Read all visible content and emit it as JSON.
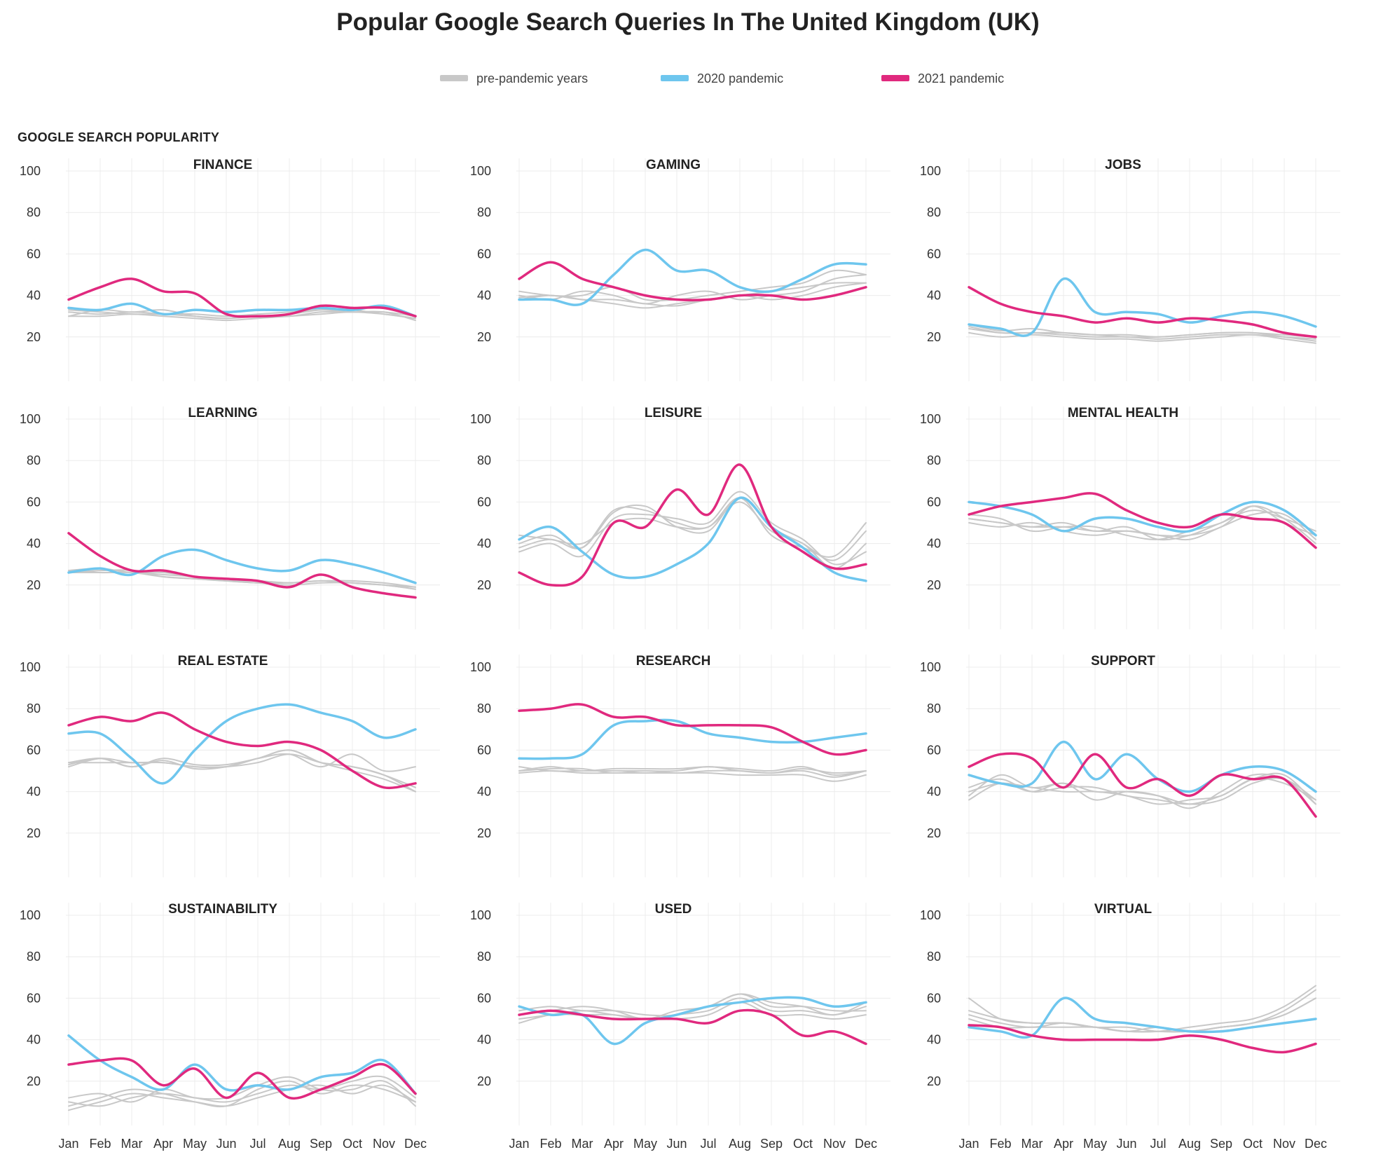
{
  "title": "Popular Google Search Queries In The United Kingdom (UK)",
  "legend": [
    {
      "label": "pre-pandemic years",
      "color": "#c8c8c8"
    },
    {
      "label": "2020 pandemic",
      "color": "#6ec6ee"
    },
    {
      "label": "2021 pandemic",
      "color": "#e0297e"
    }
  ],
  "colors": {
    "pre": "#c8c8c8",
    "y2020": "#6ec6ee",
    "y2021": "#e0297e",
    "grid": "#ececec"
  },
  "chart_data": {
    "type": "line",
    "ylabel": "GOOGLE SEARCH POPULARITY",
    "ylim": [
      0,
      100
    ],
    "yticks": [
      100,
      80,
      60,
      40,
      20
    ],
    "x": [
      "Jan",
      "Feb",
      "Mar",
      "Apr",
      "May",
      "Jun",
      "Jul",
      "Aug",
      "Sep",
      "Oct",
      "Nov",
      "Dec"
    ],
    "panels": [
      {
        "title": "FINANCE",
        "pre": [
          [
            30,
            30,
            31,
            30,
            29,
            28,
            29,
            30,
            31,
            32,
            31,
            29
          ],
          [
            32,
            31,
            32,
            31,
            30,
            29,
            30,
            30,
            32,
            32,
            32,
            28
          ],
          [
            33,
            32,
            31,
            31,
            31,
            30,
            31,
            32,
            33,
            32,
            32,
            30
          ],
          [
            30,
            33,
            32,
            33,
            30,
            29,
            30,
            31,
            33,
            33,
            31,
            29
          ]
        ],
        "y2020": [
          34,
          33,
          36,
          31,
          33,
          32,
          33,
          33,
          34,
          33,
          35,
          30
        ],
        "y2021": [
          38,
          44,
          48,
          42,
          41,
          31,
          30,
          31,
          35,
          34,
          34,
          30
        ]
      },
      {
        "title": "GAMING",
        "pre": [
          [
            38,
            40,
            38,
            36,
            34,
            36,
            38,
            40,
            38,
            40,
            44,
            46
          ],
          [
            40,
            38,
            42,
            40,
            36,
            40,
            42,
            38,
            40,
            42,
            48,
            50
          ],
          [
            42,
            40,
            40,
            44,
            38,
            38,
            40,
            42,
            44,
            46,
            52,
            50
          ],
          [
            39,
            40,
            38,
            38,
            36,
            35,
            38,
            40,
            42,
            44,
            46,
            46
          ]
        ],
        "y2020": [
          38,
          38,
          36,
          50,
          62,
          52,
          52,
          44,
          42,
          48,
          55,
          55
        ],
        "y2021": [
          48,
          56,
          48,
          44,
          40,
          38,
          38,
          40,
          40,
          38,
          40,
          44
        ]
      },
      {
        "title": "JOBS",
        "pre": [
          [
            24,
            22,
            22,
            21,
            20,
            20,
            19,
            20,
            21,
            21,
            20,
            19
          ],
          [
            26,
            23,
            24,
            22,
            21,
            21,
            20,
            21,
            22,
            22,
            20,
            18
          ],
          [
            22,
            20,
            21,
            20,
            19,
            19,
            18,
            19,
            20,
            21,
            19,
            17
          ],
          [
            25,
            22,
            22,
            22,
            21,
            20,
            20,
            21,
            22,
            22,
            21,
            20
          ]
        ],
        "y2020": [
          26,
          24,
          22,
          48,
          32,
          32,
          31,
          27,
          30,
          32,
          30,
          25
        ],
        "y2021": [
          44,
          36,
          32,
          30,
          27,
          29,
          27,
          29,
          28,
          26,
          22,
          20
        ]
      },
      {
        "title": "LEARNING",
        "pre": [
          [
            26,
            27,
            27,
            24,
            23,
            22,
            22,
            21,
            22,
            22,
            21,
            19
          ],
          [
            26,
            26,
            26,
            25,
            24,
            22,
            21,
            20,
            21,
            21,
            20,
            18
          ],
          [
            27,
            28,
            26,
            26,
            24,
            23,
            22,
            21,
            22,
            21,
            20,
            19
          ],
          [
            27,
            26,
            26,
            24,
            23,
            22,
            21,
            21,
            22,
            21,
            20,
            18
          ]
        ],
        "y2020": [
          26,
          28,
          25,
          34,
          37,
          32,
          28,
          27,
          32,
          30,
          26,
          21
        ],
        "y2021": [
          45,
          34,
          27,
          27,
          24,
          23,
          22,
          19,
          25,
          19,
          16,
          14
        ]
      },
      {
        "title": "LEISURE",
        "pre": [
          [
            40,
            44,
            38,
            55,
            58,
            48,
            46,
            62,
            48,
            40,
            32,
            46
          ],
          [
            36,
            40,
            34,
            52,
            54,
            52,
            50,
            65,
            50,
            42,
            30,
            36
          ],
          [
            44,
            42,
            40,
            50,
            52,
            48,
            48,
            60,
            46,
            40,
            28,
            40
          ],
          [
            38,
            42,
            38,
            56,
            56,
            50,
            48,
            62,
            44,
            38,
            34,
            50
          ]
        ],
        "y2020": [
          42,
          48,
          36,
          25,
          24,
          30,
          40,
          62,
          48,
          38,
          26,
          22
        ],
        "y2021": [
          26,
          20,
          24,
          50,
          48,
          66,
          54,
          78,
          48,
          36,
          28,
          30
        ]
      },
      {
        "title": "MENTAL HEALTH",
        "pre": [
          [
            52,
            50,
            48,
            50,
            46,
            48,
            42,
            44,
            50,
            56,
            52,
            46
          ],
          [
            50,
            48,
            50,
            46,
            44,
            46,
            44,
            42,
            48,
            54,
            54,
            42
          ],
          [
            54,
            52,
            46,
            48,
            48,
            44,
            42,
            46,
            50,
            58,
            50,
            44
          ],
          [
            52,
            50,
            48,
            48,
            46,
            46,
            44,
            44,
            48,
            58,
            52,
            40
          ]
        ],
        "y2020": [
          60,
          58,
          54,
          46,
          52,
          52,
          48,
          46,
          54,
          60,
          56,
          44
        ],
        "y2021": [
          54,
          58,
          60,
          62,
          64,
          56,
          50,
          48,
          54,
          52,
          50,
          38
        ]
      },
      {
        "title": "REAL ESTATE",
        "pre": [
          [
            53,
            56,
            52,
            55,
            51,
            52,
            56,
            58,
            52,
            58,
            50,
            52
          ],
          [
            54,
            54,
            54,
            54,
            52,
            52,
            54,
            58,
            54,
            52,
            48,
            40
          ],
          [
            52,
            56,
            54,
            54,
            52,
            52,
            56,
            60,
            54,
            50,
            46,
            40
          ],
          [
            54,
            56,
            52,
            56,
            53,
            53,
            56,
            60,
            54,
            52,
            48,
            42
          ]
        ],
        "y2020": [
          68,
          68,
          56,
          44,
          60,
          74,
          80,
          82,
          78,
          74,
          66,
          70
        ],
        "y2021": [
          72,
          76,
          74,
          78,
          70,
          64,
          62,
          64,
          60,
          50,
          42,
          44
        ]
      },
      {
        "title": "RESEARCH",
        "pre": [
          [
            50,
            51,
            51,
            49,
            50,
            49,
            50,
            50,
            49,
            50,
            47,
            50
          ],
          [
            52,
            50,
            50,
            50,
            50,
            50,
            52,
            50,
            49,
            51,
            49,
            50
          ],
          [
            50,
            52,
            50,
            51,
            51,
            51,
            52,
            51,
            50,
            52,
            48,
            50
          ],
          [
            49,
            50,
            49,
            49,
            49,
            49,
            49,
            48,
            48,
            48,
            45,
            48
          ]
        ],
        "y2020": [
          56,
          56,
          58,
          72,
          74,
          74,
          68,
          66,
          64,
          64,
          66,
          68
        ],
        "y2021": [
          79,
          80,
          82,
          76,
          76,
          72,
          72,
          72,
          71,
          64,
          58,
          60
        ]
      },
      {
        "title": "SUPPORT",
        "pre": [
          [
            38,
            48,
            42,
            44,
            40,
            40,
            38,
            34,
            36,
            44,
            46,
            36
          ],
          [
            42,
            46,
            40,
            42,
            42,
            38,
            36,
            34,
            38,
            46,
            48,
            34
          ],
          [
            36,
            44,
            40,
            44,
            36,
            40,
            38,
            32,
            40,
            48,
            46,
            34
          ],
          [
            40,
            44,
            42,
            40,
            40,
            38,
            34,
            36,
            38,
            46,
            44,
            36
          ]
        ],
        "y2020": [
          48,
          44,
          44,
          64,
          46,
          58,
          46,
          40,
          48,
          52,
          50,
          40
        ],
        "y2021": [
          52,
          58,
          56,
          42,
          58,
          42,
          46,
          38,
          48,
          46,
          46,
          28
        ]
      },
      {
        "title": "SUSTAINABILITY",
        "pre": [
          [
            8,
            12,
            16,
            14,
            10,
            8,
            16,
            20,
            14,
            18,
            16,
            10
          ],
          [
            12,
            14,
            10,
            16,
            12,
            12,
            18,
            22,
            16,
            16,
            20,
            8
          ],
          [
            6,
            10,
            14,
            12,
            10,
            8,
            12,
            16,
            18,
            14,
            18,
            10
          ],
          [
            10,
            8,
            12,
            14,
            12,
            10,
            14,
            18,
            16,
            20,
            22,
            12
          ]
        ],
        "y2020": [
          42,
          30,
          22,
          16,
          28,
          16,
          18,
          16,
          22,
          24,
          30,
          14
        ],
        "y2021": [
          28,
          30,
          30,
          18,
          26,
          12,
          24,
          12,
          16,
          22,
          28,
          14
        ]
      },
      {
        "title": "USED",
        "pre": [
          [
            50,
            52,
            54,
            52,
            50,
            52,
            54,
            60,
            54,
            54,
            52,
            56
          ],
          [
            52,
            54,
            56,
            54,
            50,
            54,
            56,
            62,
            56,
            56,
            54,
            54
          ],
          [
            48,
            52,
            52,
            52,
            50,
            50,
            52,
            58,
            52,
            52,
            50,
            52
          ],
          [
            54,
            56,
            54,
            54,
            52,
            52,
            56,
            62,
            58,
            56,
            52,
            58
          ]
        ],
        "y2020": [
          56,
          52,
          52,
          38,
          48,
          52,
          56,
          58,
          60,
          60,
          56,
          58
        ],
        "y2021": [
          52,
          54,
          52,
          50,
          50,
          50,
          48,
          54,
          52,
          42,
          44,
          38
        ]
      },
      {
        "title": "VIRTUAL",
        "pre": [
          [
            54,
            50,
            48,
            48,
            46,
            44,
            46,
            44,
            46,
            48,
            52,
            60
          ],
          [
            52,
            48,
            46,
            48,
            46,
            44,
            44,
            44,
            46,
            48,
            54,
            64
          ],
          [
            50,
            46,
            46,
            46,
            46,
            44,
            44,
            46,
            48,
            50,
            56,
            66
          ],
          [
            60,
            50,
            48,
            48,
            46,
            46,
            44,
            44,
            46,
            48,
            52,
            60
          ]
        ],
        "y2020": [
          46,
          44,
          42,
          60,
          50,
          48,
          46,
          44,
          44,
          46,
          48,
          50
        ],
        "y2021": [
          47,
          46,
          42,
          40,
          40,
          40,
          40,
          42,
          40,
          36,
          34,
          38
        ]
      }
    ]
  }
}
